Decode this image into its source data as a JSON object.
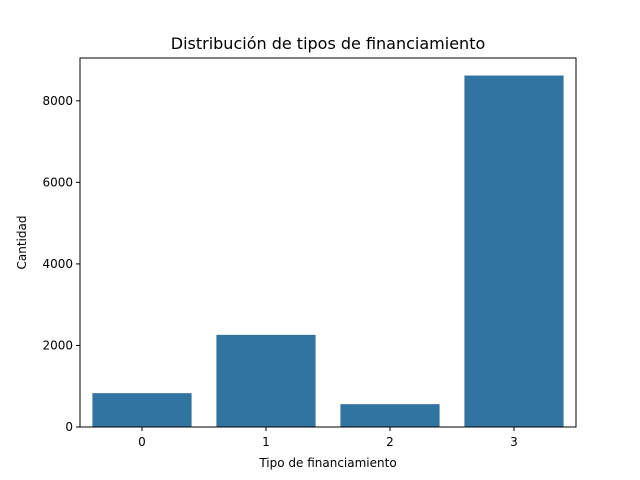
{
  "chart_data": {
    "type": "bar",
    "title": "Distribución de tipos de financiamiento",
    "xlabel": "Tipo de financiamiento",
    "ylabel": "Cantidad",
    "categories": [
      "0",
      "1",
      "2",
      "3"
    ],
    "values": [
      830,
      2260,
      560,
      8620
    ],
    "ylim": [
      0,
      9050
    ],
    "yticks": [
      0,
      2000,
      4000,
      6000,
      8000
    ],
    "ytick_labels": [
      "0",
      "2000",
      "4000",
      "6000",
      "8000"
    ],
    "grid": false,
    "legend": "none",
    "bar_color": "#3274a1"
  }
}
